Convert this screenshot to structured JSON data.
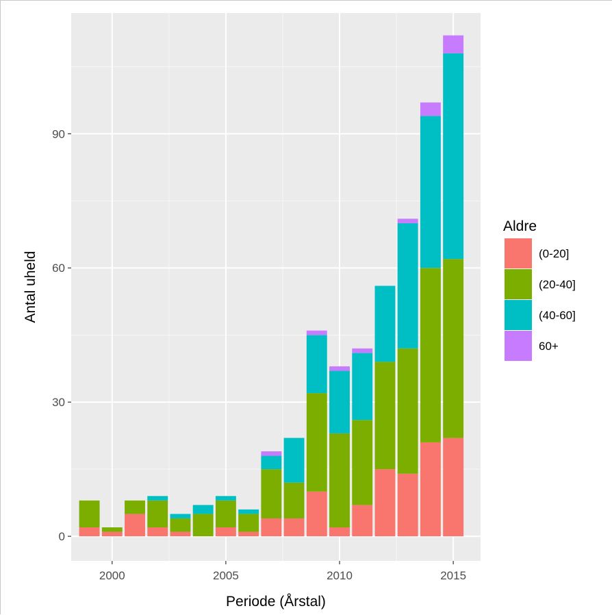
{
  "chart_data": {
    "type": "bar",
    "stacked": true,
    "x": [
      1999,
      2000,
      2001,
      2002,
      2003,
      2004,
      2005,
      2006,
      2007,
      2008,
      2009,
      2010,
      2011,
      2012,
      2013,
      2014,
      2015
    ],
    "series": [
      {
        "name": "(0-20]",
        "color": "#F8766D",
        "values": [
          2,
          1,
          5,
          2,
          1,
          0,
          2,
          1,
          4,
          4,
          10,
          2,
          7,
          15,
          14,
          21,
          22
        ]
      },
      {
        "name": "(20-40]",
        "color": "#7CAE00",
        "values": [
          6,
          1,
          3,
          6,
          3,
          5,
          6,
          4,
          11,
          8,
          22,
          21,
          19,
          24,
          28,
          39,
          40
        ]
      },
      {
        "name": "(40-60]",
        "color": "#00BFC4",
        "values": [
          0,
          0,
          0,
          1,
          1,
          2,
          1,
          1,
          3,
          10,
          13,
          14,
          15,
          17,
          28,
          34,
          46
        ]
      },
      {
        "name": "60+",
        "color": "#C77CFF",
        "values": [
          0,
          0,
          0,
          0,
          0,
          0,
          0,
          0,
          1,
          0,
          1,
          1,
          1,
          0,
          1,
          3,
          4
        ]
      }
    ],
    "xlabel": "Periode (Årstal)",
    "ylabel": "Antal uheld",
    "legend_title": "Aldre",
    "legend_position": "right",
    "x_ticks": [
      "2000",
      "2005",
      "2010",
      "2015"
    ],
    "x_tick_values": [
      2000,
      2005,
      2010,
      2015
    ],
    "y_ticks": [
      "0",
      "30",
      "60",
      "90"
    ],
    "y_tick_values": [
      0,
      30,
      60,
      90
    ],
    "xlim": [
      1998.2,
      2016.2
    ],
    "ylim": [
      -5.5,
      117
    ],
    "grid": true,
    "panel_background": "#EBEBEB",
    "grid_color": "#FFFFFF"
  }
}
